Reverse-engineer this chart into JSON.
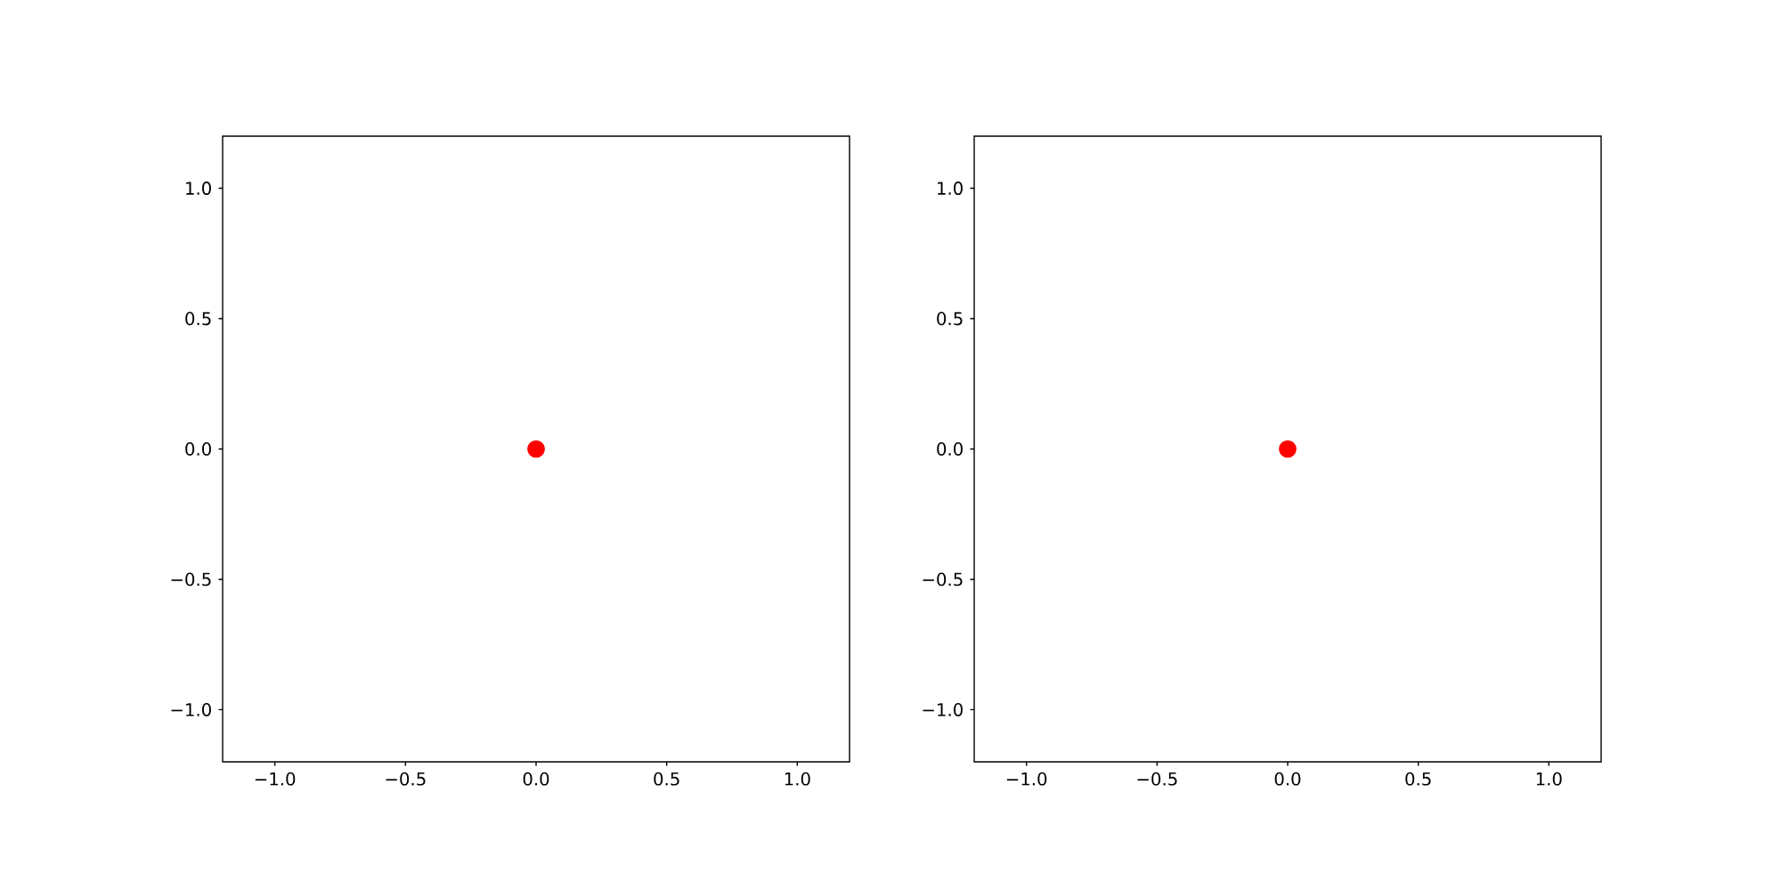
{
  "chart_data": [
    {
      "type": "scatter",
      "x": [
        0
      ],
      "values": [
        0
      ],
      "color": "#ff0000",
      "xlim": [
        -1.2,
        1.2
      ],
      "ylim": [
        -1.2,
        1.2
      ],
      "xticks": [
        {
          "value": -1,
          "label": "−1.0"
        },
        {
          "value": -0.5,
          "label": "−0.5"
        },
        {
          "value": 0,
          "label": "0.0"
        },
        {
          "value": 0.5,
          "label": "0.5"
        },
        {
          "value": 1,
          "label": "1.0"
        }
      ],
      "yticks": [
        {
          "value": -1,
          "label": "−1.0"
        },
        {
          "value": -0.5,
          "label": "−0.5"
        },
        {
          "value": 0,
          "label": "0.0"
        },
        {
          "value": 0.5,
          "label": "0.5"
        },
        {
          "value": 1,
          "label": "1.0"
        }
      ]
    },
    {
      "type": "scatter",
      "x": [
        0
      ],
      "values": [
        0
      ],
      "color": "#ff0000",
      "xlim": [
        -1.2,
        1.2
      ],
      "ylim": [
        -1.2,
        1.2
      ],
      "xticks": [
        {
          "value": -1,
          "label": "−1.0"
        },
        {
          "value": -0.5,
          "label": "−0.5"
        },
        {
          "value": 0,
          "label": "0.0"
        },
        {
          "value": 0.5,
          "label": "0.5"
        },
        {
          "value": 1,
          "label": "1.0"
        }
      ],
      "yticks": [
        {
          "value": -1,
          "label": "−1.0"
        },
        {
          "value": -0.5,
          "label": "−0.5"
        },
        {
          "value": 0,
          "label": "0.0"
        },
        {
          "value": 0.5,
          "label": "0.5"
        },
        {
          "value": 1,
          "label": "1.0"
        }
      ]
    }
  ]
}
